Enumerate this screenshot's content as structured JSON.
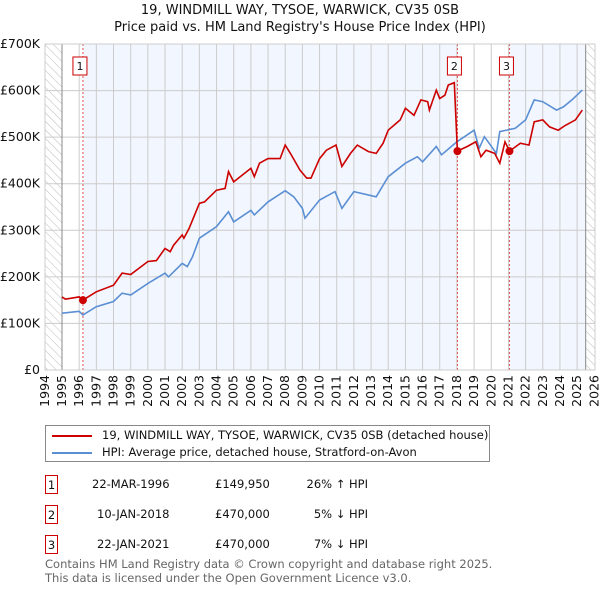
{
  "title": "19, WINDMILL WAY, TYSOE, WARWICK, CV35 0SB",
  "subtitle": "Price paid vs. HM Land Registry's House Price Index (HPI)",
  "chart_data": {
    "type": "line",
    "ylim": [
      0,
      700000
    ],
    "xlim": [
      1994,
      2026
    ],
    "ytick_labels": [
      "£0",
      "£100K",
      "£200K",
      "£300K",
      "£400K",
      "£500K",
      "£600K",
      "£700K"
    ],
    "yticks": [
      0,
      100,
      200,
      300,
      400,
      500,
      600,
      700
    ],
    "xtick_labels": [
      "1994",
      "1995",
      "1996",
      "1997",
      "1998",
      "1999",
      "2000",
      "2001",
      "2002",
      "2003",
      "2004",
      "2005",
      "2006",
      "2007",
      "2008",
      "2009",
      "2010",
      "2011",
      "2012",
      "2013",
      "2014",
      "2015",
      "2016",
      "2017",
      "2018",
      "2019",
      "2020",
      "2021",
      "2022",
      "2023",
      "2024",
      "2025",
      "2026"
    ],
    "grid": true,
    "data_end": 2025.5,
    "value_unit": "thousand GBP",
    "series": [
      {
        "name": "19, WINDMILL WAY, TYSOE, WARWICK, CV35 0SB (detached house)",
        "color": "#cc0000",
        "x": [
          1995,
          1995.2,
          1996,
          1996.22,
          1997,
          1998,
          1998.5,
          1999,
          2000,
          2000.5,
          2001,
          2001.3,
          2001.5,
          2002,
          2002.1,
          2002.4,
          2003,
          2003.3,
          2004,
          2004.5,
          2004.7,
          2005,
          2006,
          2006.2,
          2006.5,
          2007,
          2007.7,
          2008,
          2008.3,
          2008.86,
          2009.25,
          2009.5,
          2010,
          2010.4,
          2010.96,
          2011.3,
          2011.8,
          2012.2,
          2012.85,
          2013.3,
          2013.7,
          2014,
          2014.7,
          2015,
          2015.5,
          2015.9,
          2016.3,
          2016.4,
          2016.8,
          2017,
          2017.3,
          2017.5,
          2017.85,
          2018.03,
          2018.6,
          2019.1,
          2019.4,
          2019.7,
          2020.2,
          2020.5,
          2020.8,
          2021.06,
          2021.7,
          2022.2,
          2022.5,
          2023,
          2023.4,
          2023.9,
          2024.3,
          2024.9,
          2025.3
        ],
        "y": [
          157,
          152,
          157,
          150,
          168,
          182,
          208,
          205,
          233,
          235,
          261,
          254,
          268,
          290,
          283,
          304,
          358,
          361,
          386,
          390,
          426,
          404,
          433,
          415,
          444,
          454,
          454,
          483,
          465,
          429,
          412,
          412,
          454,
          472,
          483,
          437,
          465,
          483,
          469,
          465,
          487,
          515,
          537,
          562,
          547,
          580,
          576,
          558,
          601,
          583,
          590,
          612,
          617,
          470,
          480,
          490,
          458,
          472,
          465,
          444,
          490,
          470,
          487,
          483,
          533,
          537,
          522,
          515,
          525,
          537,
          558
        ]
      },
      {
        "name": "HPI: Average price, detached house, Stratford-on-Avon",
        "color": "#5b8fd4",
        "x": [
          1995,
          1996,
          1996.22,
          1997,
          1998,
          1998.5,
          1999,
          2000,
          2001,
          2001.2,
          2002,
          2002.3,
          2002.6,
          2003,
          2004,
          2004.7,
          2005,
          2006,
          2006.2,
          2007,
          2008,
          2008.5,
          2009,
          2009.15,
          2010,
          2010.9,
          2011.3,
          2012,
          2013.3,
          2014,
          2015,
          2015.7,
          2016,
          2016.8,
          2017.1,
          2018,
          2019,
          2019.3,
          2019.6,
          2020.3,
          2020.5,
          2021.4,
          2022,
          2022.5,
          2023,
          2023.8,
          2024.2,
          2024.7,
          2025.3
        ],
        "y": [
          122,
          126,
          118,
          136,
          147,
          165,
          161,
          186,
          208,
          200,
          229,
          222,
          243,
          283,
          308,
          340,
          318,
          343,
          333,
          361,
          385,
          372,
          347,
          326,
          365,
          383,
          347,
          383,
          372,
          415,
          444,
          458,
          447,
          480,
          462,
          490,
          515,
          476,
          501,
          465,
          512,
          519,
          537,
          580,
          576,
          558,
          565,
          580,
          601
        ]
      }
    ],
    "sales": [
      {
        "id": "1",
        "year": 1996.22,
        "price": 149.95
      },
      {
        "id": "2",
        "year": 2018.03,
        "price": 470
      },
      {
        "id": "3",
        "year": 2021.06,
        "price": 470
      }
    ]
  },
  "legend": [
    {
      "label": "19, WINDMILL WAY, TYSOE, WARWICK, CV35 0SB (detached house)",
      "color": "#cc0000"
    },
    {
      "label": "HPI: Average price, detached house, Stratford-on-Avon",
      "color": "#5b8fd4"
    }
  ],
  "transactions": [
    {
      "num": "1",
      "date": "22-MAR-1996",
      "price": "£149,950",
      "hpi": "26% ↑ HPI"
    },
    {
      "num": "2",
      "date": "10-JAN-2018",
      "price": "£470,000",
      "hpi": "5% ↓ HPI"
    },
    {
      "num": "3",
      "date": "22-JAN-2021",
      "price": "£470,000",
      "hpi": "7% ↓ HPI"
    }
  ],
  "footer": [
    "Contains HM Land Registry data © Crown copyright and database right 2025.",
    "This data is licensed under the Open Government Licence v3.0."
  ]
}
